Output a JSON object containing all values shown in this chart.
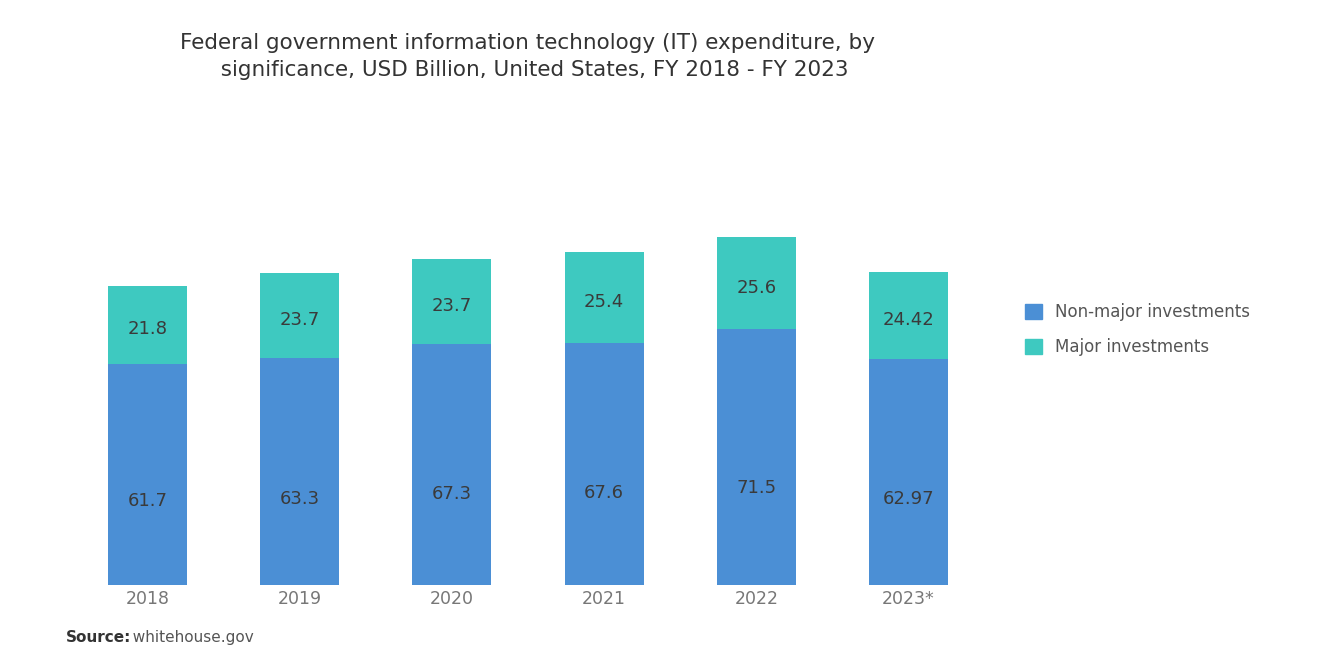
{
  "title": "Federal government information technology (IT) expenditure, by\n  significance, USD Billion, United States, FY 2018 - FY 2023",
  "categories": [
    "2018",
    "2019",
    "2020",
    "2021",
    "2022",
    "2023*"
  ],
  "non_major": [
    61.7,
    63.3,
    67.3,
    67.6,
    71.5,
    62.97
  ],
  "major": [
    21.8,
    23.7,
    23.7,
    25.4,
    25.6,
    24.42
  ],
  "non_major_color": "#4B8FD5",
  "major_color": "#3EC9C0",
  "background_color": "#ffffff",
  "title_fontsize": 15.5,
  "label_fontsize": 13,
  "tick_fontsize": 12.5,
  "source_bold": "Source:",
  "source_rest": "  whitehouse.gov",
  "legend_labels": [
    "Non-major investments",
    "Major investments"
  ],
  "bar_width": 0.52,
  "ylim": [
    0,
    115
  ]
}
